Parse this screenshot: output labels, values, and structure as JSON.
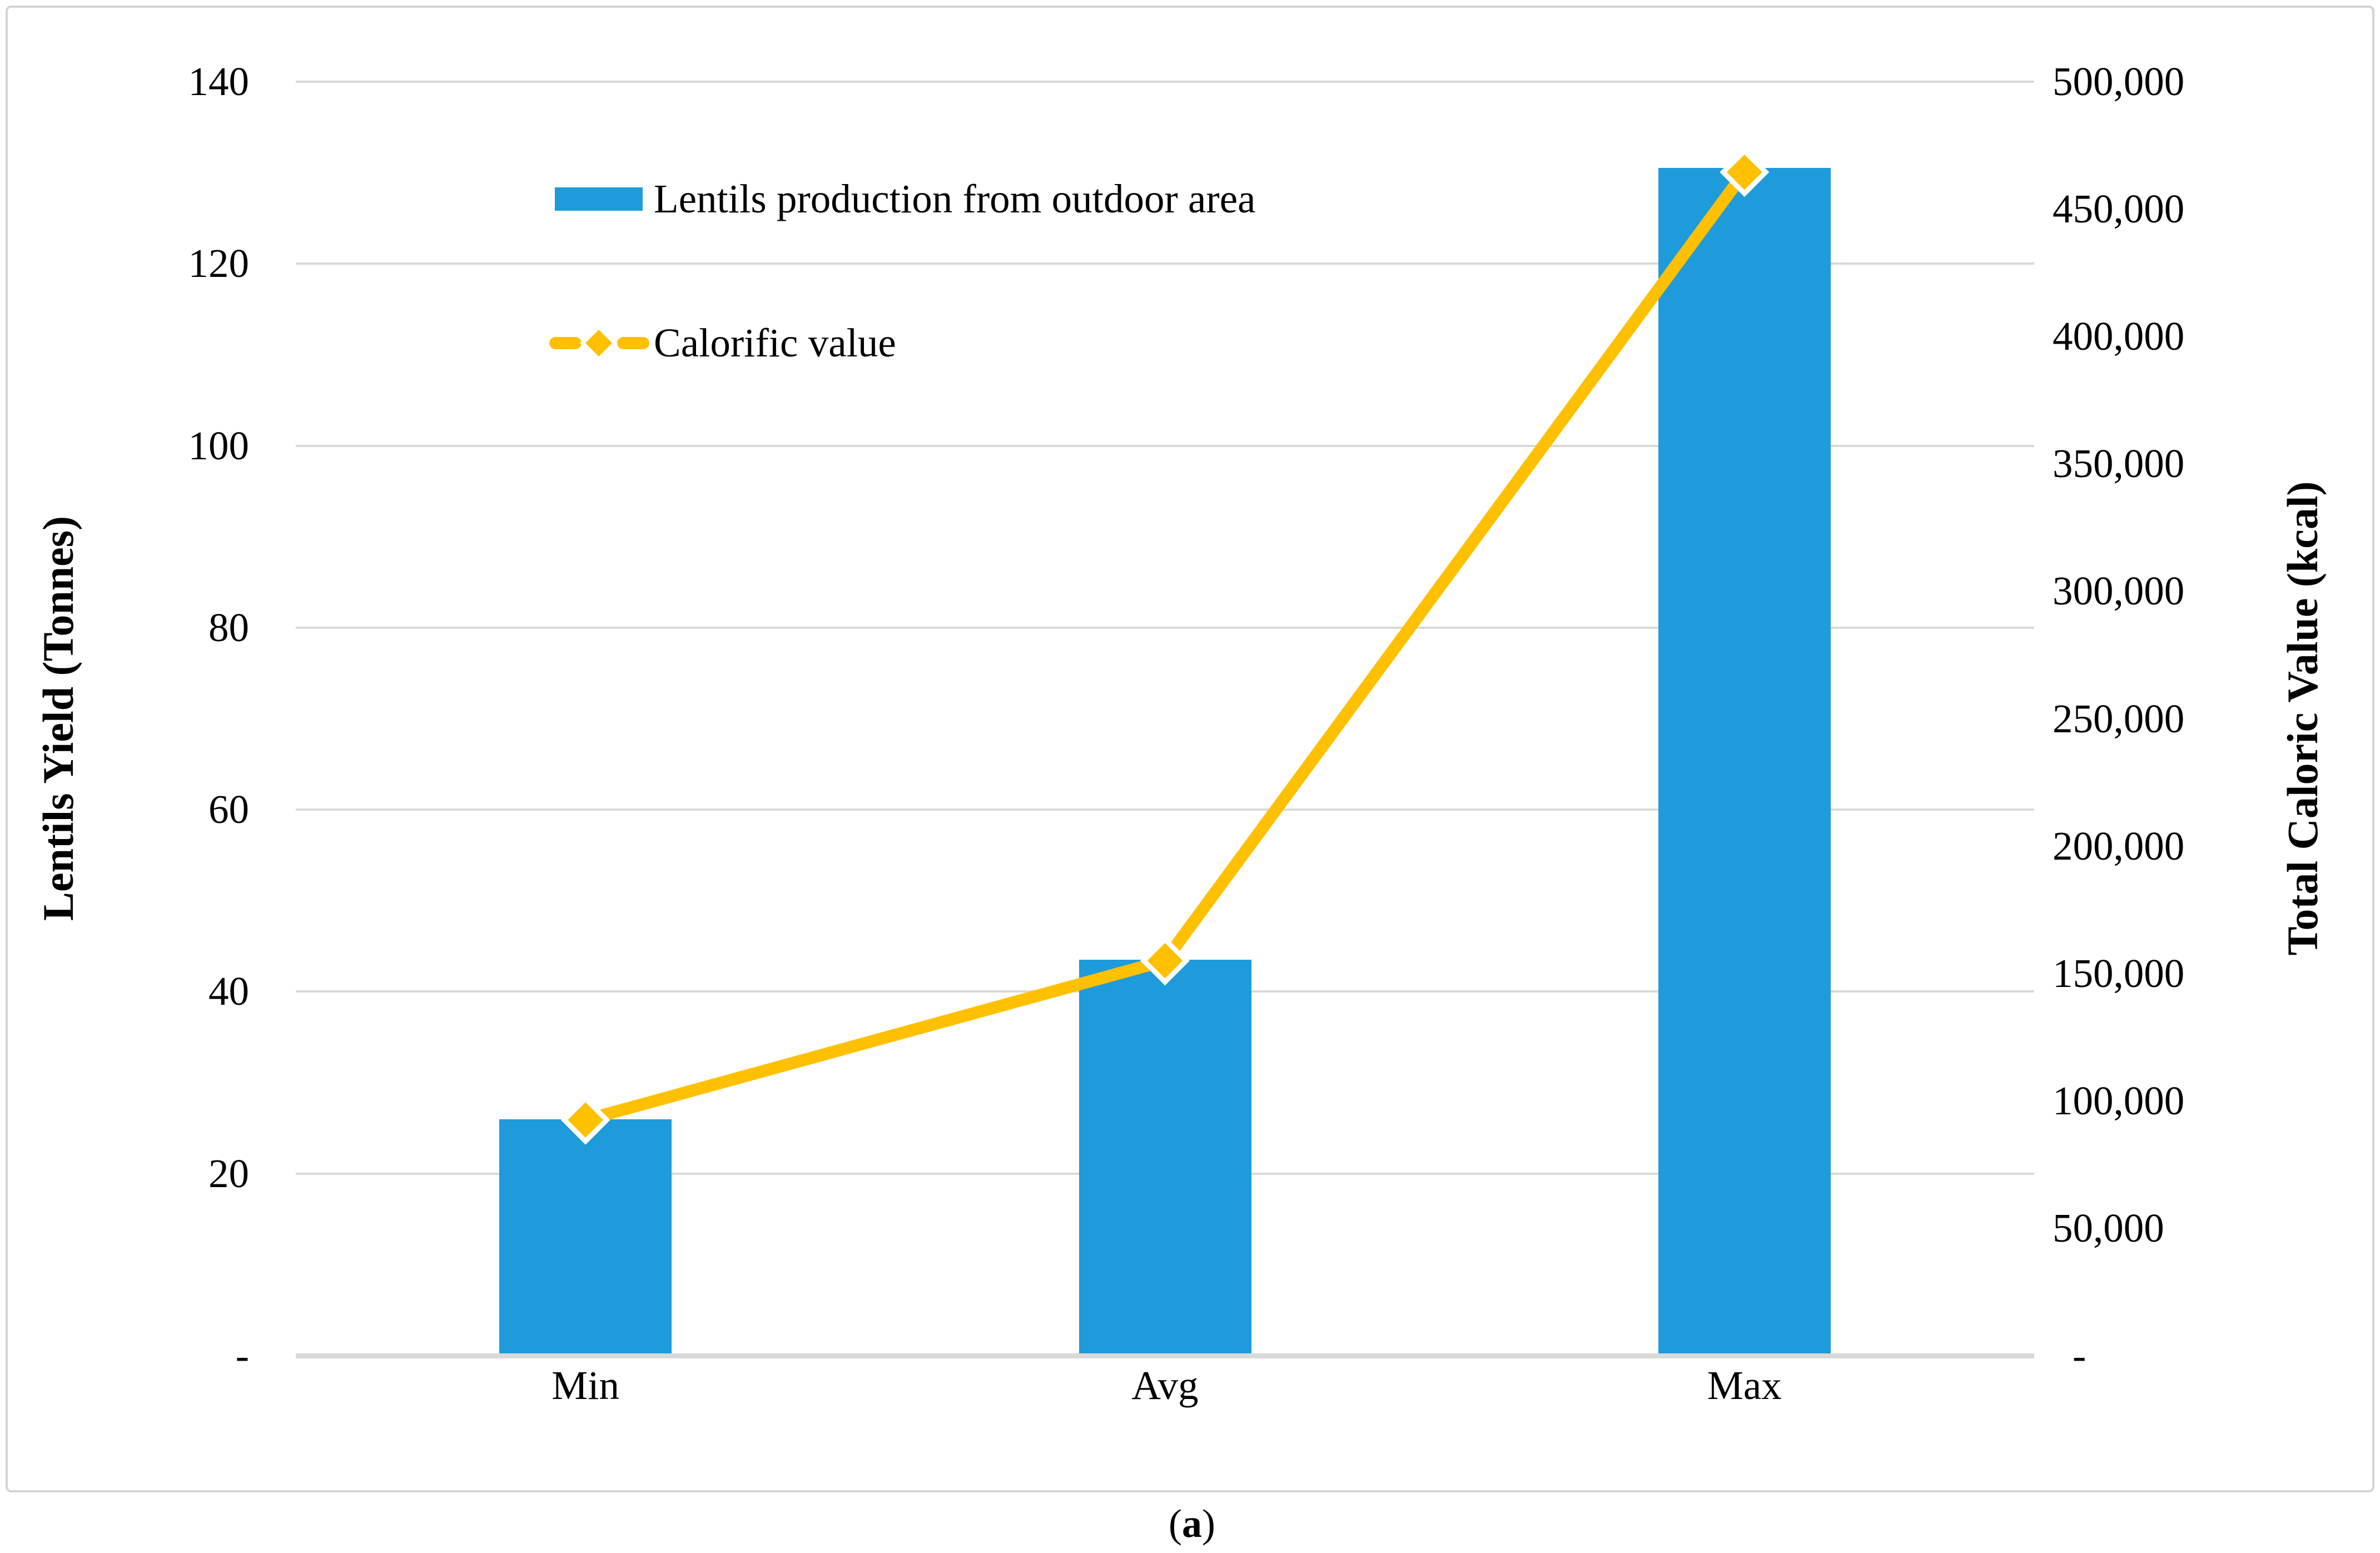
{
  "figure": {
    "caption_open": "(",
    "caption_letter": "a",
    "caption_close": ")"
  },
  "colors": {
    "bar_blue": "#1E9BDA",
    "line_gold": "#FFC000",
    "gridline": "#D9D9D9",
    "frame_border": "#D4D4D4",
    "text": "#000000",
    "marker_outline": "#FFFFFF"
  },
  "left_axis": {
    "title": "Lentils Yield (Tonnes)",
    "tick_labels": [
      "140",
      "120",
      "100",
      "80",
      "60",
      "40",
      "20",
      "-"
    ],
    "tick_values": [
      140,
      120,
      100,
      80,
      60,
      40,
      20,
      0
    ]
  },
  "right_axis": {
    "title": "Total Caloric Value (kcal)",
    "tick_labels": [
      "500,000",
      "450,000",
      "400,000",
      "350,000",
      "300,000",
      "250,000",
      "200,000",
      "150,000",
      "100,000",
      "50,000",
      "-"
    ],
    "tick_values": [
      500000,
      450000,
      400000,
      350000,
      300000,
      250000,
      200000,
      150000,
      100000,
      50000,
      0
    ]
  },
  "legend": {
    "bar_item_label": "Lentils production from outdoor area",
    "line_item_label": "Calorific value"
  },
  "chart_data": {
    "type": "bar+line",
    "categories": [
      "Min",
      "Avg",
      "Max"
    ],
    "series": [
      {
        "name": "Lentils production from outdoor area",
        "type": "bar",
        "axis": "left",
        "values": [
          26,
          43.5,
          130.5
        ]
      },
      {
        "name": "Calorific value",
        "type": "line",
        "axis": "right",
        "values": [
          92500,
          155000,
          464500
        ]
      }
    ],
    "left_ylim": [
      0,
      140
    ],
    "left_tick_step": 20,
    "right_ylim": [
      0,
      500000
    ],
    "right_tick_step": 50000,
    "grid": "horizontal",
    "legend_position": "inside-top-left",
    "zero_shown_as": "-"
  }
}
